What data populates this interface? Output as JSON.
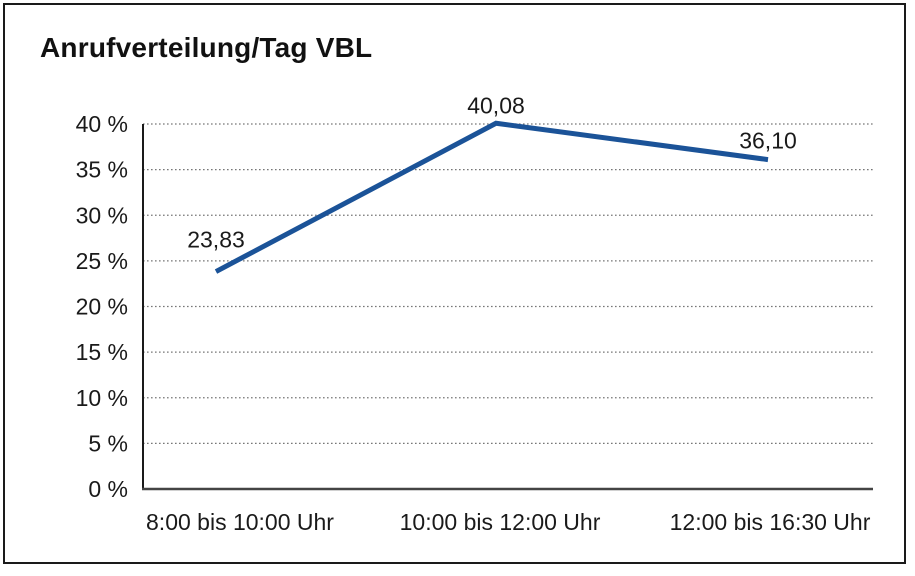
{
  "window": {
    "background_color": "#ffffff",
    "border_color": "#1a1a1a"
  },
  "chart_data": {
    "type": "line",
    "title": "Anrufverteilung/Tag VBL",
    "categories": [
      "8:00 bis 10:00 Uhr",
      "10:00 bis 12:00 Uhr",
      "12:00 bis 16:30 Uhr"
    ],
    "values": [
      23.83,
      40.08,
      36.1
    ],
    "point_labels": [
      "23,83",
      "40,08",
      "36,10"
    ],
    "xlabel": "",
    "ylabel": "",
    "ylim": [
      0,
      40
    ],
    "ytick_step": 5,
    "ytick_labels": [
      "0 %",
      "5 %",
      "10 %",
      "15 %",
      "20 %",
      "25 %",
      "30 %",
      "35 %",
      "40 %"
    ],
    "grid": "horizontal-dotted",
    "legend": "none",
    "line_color": "#1B5398",
    "gridline_color": "#777777",
    "axis_color": "#1a1a1a",
    "text_color": "#1a1a1a"
  }
}
